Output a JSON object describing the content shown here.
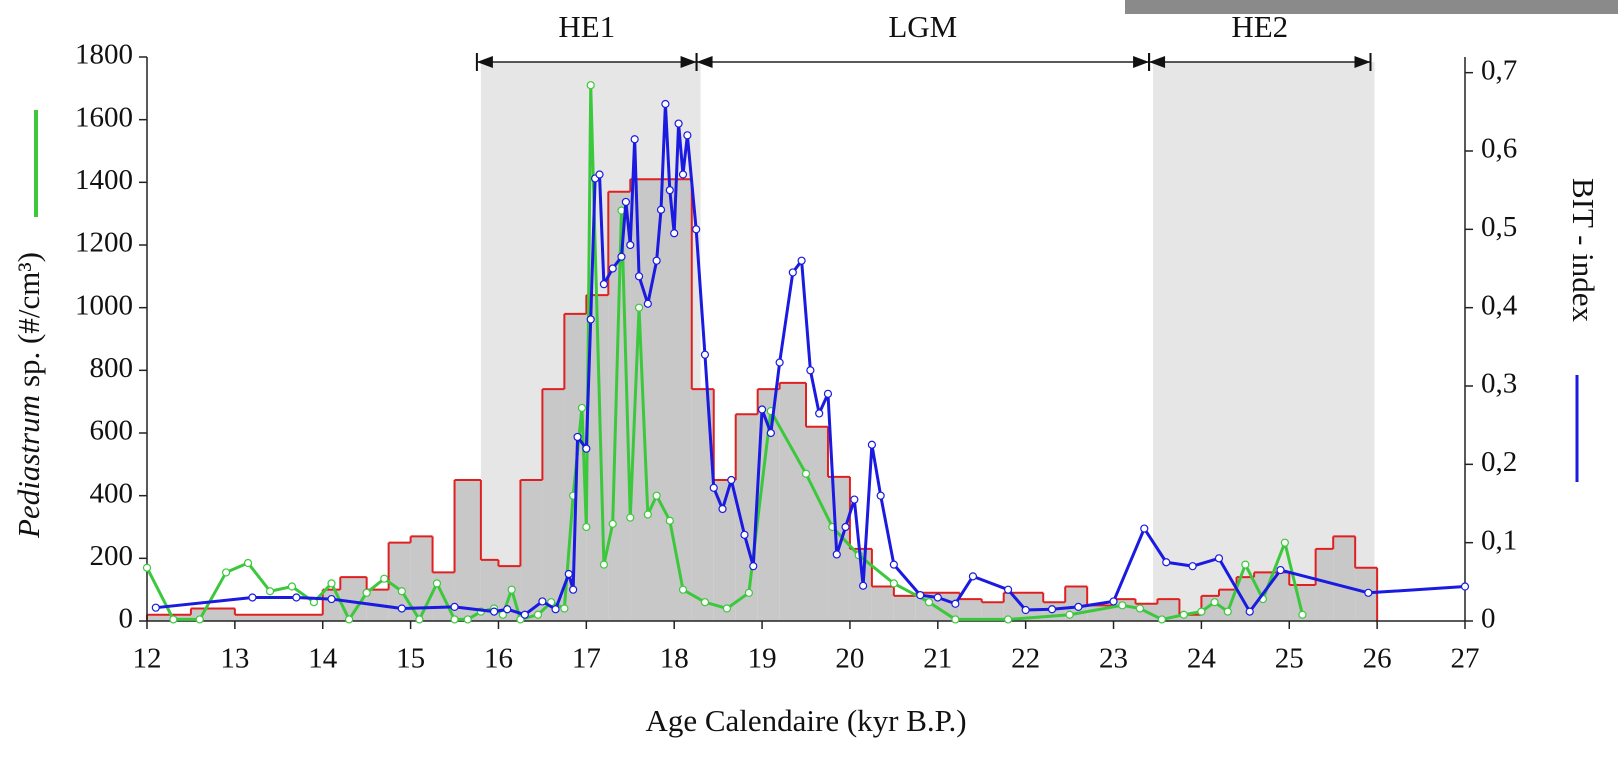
{
  "chart_data": {
    "type": "line",
    "x_label": "Age Calendaire (kyr B.P.)",
    "y_label": [
      "Pediastrum",
      "sp. (#/cm³)"
    ],
    "y2_label": "BIT - index",
    "xlim": [
      12,
      27
    ],
    "xticks": [
      12,
      13,
      14,
      15,
      16,
      17,
      18,
      19,
      20,
      21,
      22,
      23,
      24,
      25,
      26,
      27
    ],
    "ylim": [
      0,
      1800
    ],
    "yticks": [
      0,
      200,
      400,
      600,
      800,
      1000,
      1200,
      1400,
      1600,
      1800
    ],
    "y2lim": [
      0,
      0.72
    ],
    "y2ticks": [
      0,
      {
        "value": 0.1,
        "label": "0,1"
      },
      {
        "value": 0.2,
        "label": "0,2"
      },
      {
        "value": 0.3,
        "label": "0,3"
      },
      {
        "value": 0.4,
        "label": "0,4"
      },
      {
        "value": 0.5,
        "label": "0,5"
      },
      {
        "value": 0.6,
        "label": "0,6"
      },
      {
        "value": 0.7,
        "label": "0,7"
      }
    ],
    "periods": [
      {
        "label": "HE1",
        "start": 15.8,
        "end": 18.3,
        "shaded": true
      },
      {
        "label": "LGM",
        "start": 18.3,
        "end": 23.45,
        "shaded": false
      },
      {
        "label": "HE2",
        "start": 23.45,
        "end": 25.97,
        "shaded": true
      }
    ],
    "histogram": {
      "color": "#e02020",
      "fill": "#c8c8c8",
      "bins": [
        12.0,
        12.5,
        13.0,
        14.0,
        14.2,
        14.5,
        14.75,
        15.0,
        15.25,
        15.5,
        15.8,
        16.0,
        16.25,
        16.5,
        16.75,
        17.0,
        17.25,
        17.5,
        18.2,
        18.45,
        18.7,
        18.95,
        19.2,
        19.5,
        19.75,
        20.0,
        20.25,
        20.5,
        20.75,
        21.25,
        21.5,
        21.75,
        22.2,
        22.45,
        22.7,
        23.0,
        23.25,
        23.5,
        23.75,
        24.0,
        24.2,
        24.4,
        24.6,
        25.0,
        25.3,
        25.5,
        25.75,
        26.0
      ],
      "values": [
        20,
        40,
        20,
        100,
        140,
        100,
        250,
        270,
        155,
        450,
        195,
        175,
        450,
        740,
        980,
        1040,
        1370,
        1410,
        740,
        450,
        660,
        740,
        760,
        620,
        460,
        230,
        110,
        80,
        90,
        70,
        60,
        90,
        60,
        110,
        50,
        70,
        55,
        70,
        20,
        80,
        100,
        140,
        155,
        115,
        230,
        270,
        170
      ]
    },
    "series": [
      {
        "name": "Pediastrum",
        "color": "#3cc83c",
        "axis": "y",
        "x": [
          12.0,
          12.3,
          12.6,
          12.9,
          13.15,
          13.4,
          13.65,
          13.9,
          14.1,
          14.3,
          14.5,
          14.7,
          14.9,
          15.1,
          15.3,
          15.5,
          15.65,
          15.8,
          15.95,
          16.05,
          16.15,
          16.25,
          16.45,
          16.6,
          16.75,
          16.85,
          16.95,
          17.0,
          17.05,
          17.2,
          17.3,
          17.4,
          17.5,
          17.6,
          17.7,
          17.8,
          17.95,
          18.1,
          18.35,
          18.6,
          18.85,
          19.1,
          19.5,
          19.8,
          20.1,
          20.5,
          20.9,
          21.2,
          21.8,
          22.5,
          23.1,
          23.3,
          23.55,
          23.8,
          24.0,
          24.15,
          24.3,
          24.5,
          24.7,
          24.95,
          25.15
        ],
        "values": [
          170,
          5,
          5,
          155,
          185,
          95,
          110,
          60,
          120,
          5,
          90,
          135,
          95,
          5,
          120,
          5,
          5,
          30,
          40,
          20,
          100,
          5,
          20,
          60,
          40,
          400,
          680,
          300,
          1710,
          180,
          310,
          1310,
          330,
          1000,
          340,
          400,
          320,
          100,
          60,
          40,
          90,
          670,
          470,
          300,
          210,
          120,
          60,
          5,
          5,
          20,
          50,
          40,
          5,
          20,
          30,
          60,
          30,
          180,
          70,
          250,
          20
        ]
      },
      {
        "name": "BIT - index",
        "color": "#1a1ae0",
        "axis": "y2",
        "x": [
          12.1,
          13.2,
          13.7,
          14.1,
          14.9,
          15.5,
          15.95,
          16.1,
          16.3,
          16.5,
          16.65,
          16.8,
          16.85,
          16.9,
          17.0,
          17.05,
          17.1,
          17.15,
          17.2,
          17.3,
          17.4,
          17.45,
          17.5,
          17.55,
          17.6,
          17.7,
          17.8,
          17.85,
          17.9,
          17.95,
          18.0,
          18.05,
          18.1,
          18.15,
          18.25,
          18.35,
          18.45,
          18.55,
          18.65,
          18.8,
          18.9,
          19.0,
          19.1,
          19.2,
          19.35,
          19.45,
          19.55,
          19.65,
          19.75,
          19.85,
          19.95,
          20.05,
          20.15,
          20.25,
          20.35,
          20.5,
          20.8,
          21.0,
          21.2,
          21.4,
          21.8,
          22.0,
          22.3,
          22.6,
          23.0,
          23.35,
          23.6,
          23.9,
          24.2,
          24.55,
          24.9,
          25.9,
          27.0
        ],
        "values": [
          0.017,
          0.03,
          0.03,
          0.028,
          0.016,
          0.018,
          0.012,
          0.015,
          0.008,
          0.025,
          0.015,
          0.06,
          0.04,
          0.235,
          0.22,
          0.385,
          0.565,
          0.57,
          0.43,
          0.45,
          0.465,
          0.535,
          0.48,
          0.615,
          0.44,
          0.405,
          0.46,
          0.525,
          0.66,
          0.55,
          0.495,
          0.635,
          0.57,
          0.62,
          0.5,
          0.34,
          0.17,
          0.143,
          0.18,
          0.11,
          0.07,
          0.27,
          0.24,
          0.33,
          0.445,
          0.46,
          0.32,
          0.265,
          0.29,
          0.085,
          0.12,
          0.155,
          0.045,
          0.225,
          0.16,
          0.072,
          0.033,
          0.03,
          0.022,
          0.057,
          0.04,
          0.014,
          0.015,
          0.018,
          0.025,
          0.118,
          0.075,
          0.07,
          0.08,
          0.012,
          0.065,
          0.036,
          0.044
        ]
      }
    ]
  }
}
